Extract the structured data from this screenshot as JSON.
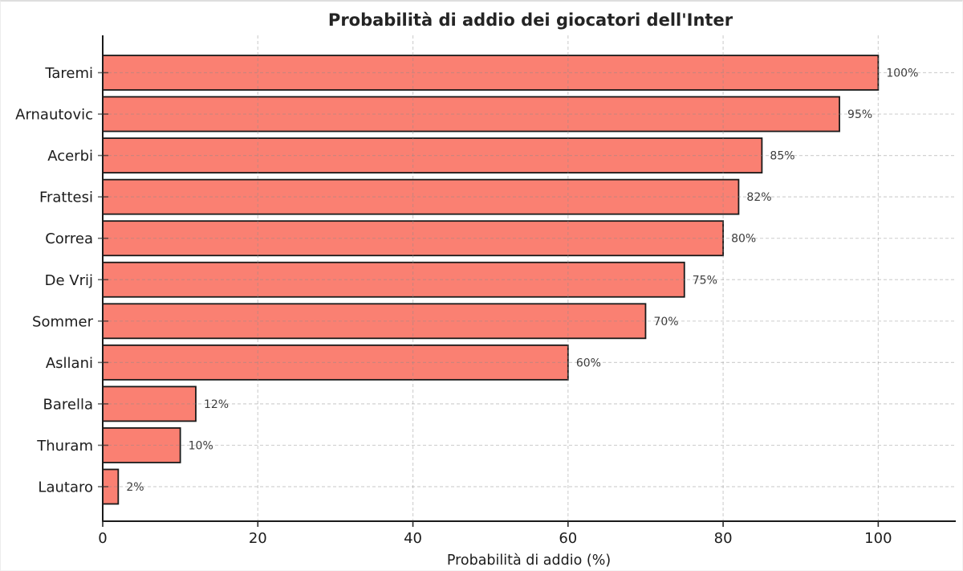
{
  "chart_data": {
    "type": "bar",
    "orientation": "horizontal",
    "title": "Probabilità di addio dei giocatori dell'Inter",
    "xlabel": "Probabilità di addio (%)",
    "ylabel": "",
    "categories": [
      "Taremi",
      "Arnautovic",
      "Acerbi",
      "Frattesi",
      "Correa",
      "De Vrij",
      "Sommer",
      "Asllani",
      "Barella",
      "Thuram",
      "Lautaro"
    ],
    "values": [
      100,
      95,
      85,
      82,
      80,
      75,
      70,
      60,
      12,
      10,
      2
    ],
    "value_labels": [
      "100%",
      "95%",
      "85%",
      "82%",
      "80%",
      "75%",
      "70%",
      "60%",
      "12%",
      "10%",
      "2%"
    ],
    "x_ticks": [
      0,
      20,
      40,
      60,
      80,
      100
    ],
    "x_tick_labels": [
      "0",
      "20",
      "40",
      "60",
      "80",
      "100"
    ],
    "xlim": [
      0,
      110
    ],
    "grid": true,
    "grid_style": "dashed",
    "legend": false,
    "colors": {
      "bar_fill": "#FA8072",
      "bar_edge": "#1a1a1a",
      "grid": "#8c8c8c",
      "spine": "#1a1a1a",
      "tick": "#2b2b2b",
      "background": "#ffffff"
    }
  }
}
